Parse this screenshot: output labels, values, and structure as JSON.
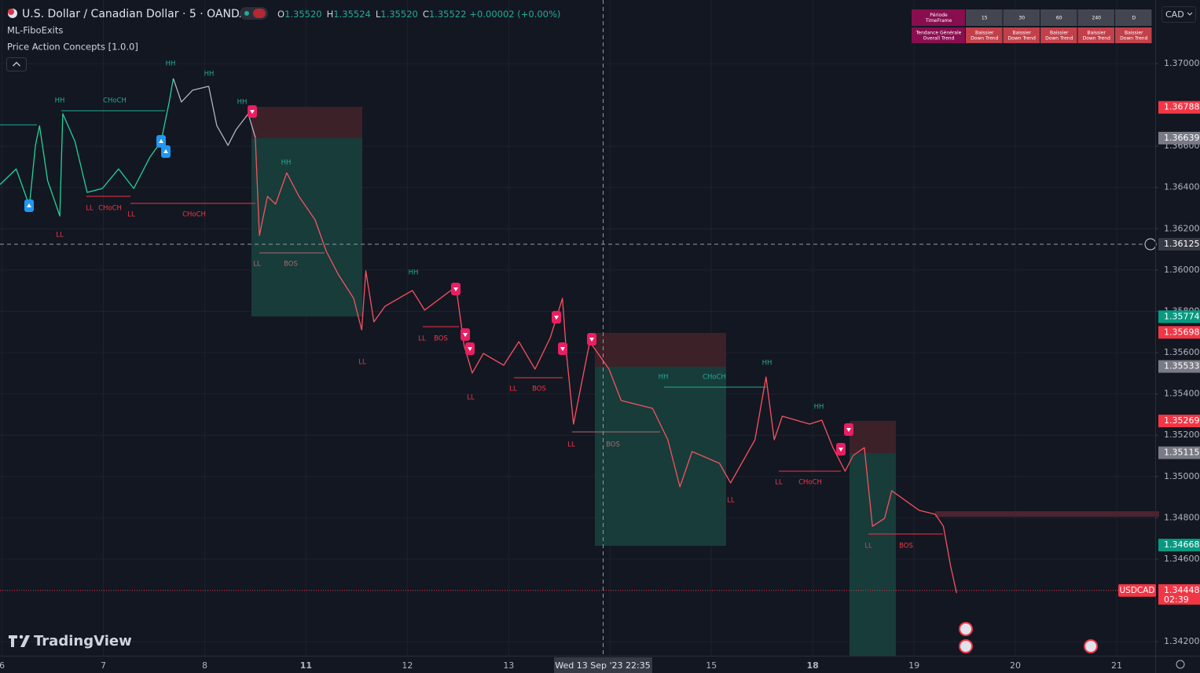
{
  "header": {
    "title": "U.S. Dollar / Canadian Dollar · 5 · OANDA",
    "ohlc": [
      {
        "key": "O",
        "value": "1.35520"
      },
      {
        "key": "H",
        "value": "1.35524"
      },
      {
        "key": "L",
        "value": "1.35520"
      },
      {
        "key": "C",
        "value": "1.35522"
      }
    ],
    "change": "+0.00002 (+0.00%)",
    "indicators": [
      "ML-FiboExits",
      "Price Action Concepts [1.0.0]"
    ],
    "currency": "CAD",
    "logo": "TradingView"
  },
  "trend_table": {
    "header": [
      [
        "Période",
        "TimeFrame"
      ],
      [
        "15"
      ],
      [
        "30"
      ],
      [
        "60"
      ],
      [
        "240"
      ],
      [
        "D"
      ]
    ],
    "row": [
      [
        "Tendance Générale",
        "Overall Trend"
      ],
      [
        "Baissier",
        "Down Trend"
      ],
      [
        "Baissier",
        "Down Trend"
      ],
      [
        "Baissier",
        "Down Trend"
      ],
      [
        "Baissier",
        "Down Trend"
      ],
      [
        "Baissier",
        "Down Trend"
      ]
    ]
  },
  "chart_data": {
    "type": "line",
    "xlim": [
      -0.02,
      11.38
    ],
    "ylim": [
      1.34132,
      1.37308
    ],
    "time_labels": [
      "6",
      "7",
      "8",
      "11",
      "12",
      "13",
      null,
      "15",
      "18",
      "19",
      "20",
      "21"
    ],
    "yticks": [
      {
        "value": 1.37,
        "label": "1.37000"
      },
      {
        "value": 1.366,
        "label": "1.36600"
      },
      {
        "value": 1.364,
        "label": "1.36400"
      },
      {
        "value": 1.362,
        "label": "1.36200"
      },
      {
        "value": 1.36,
        "label": "1.36000"
      },
      {
        "value": 1.358,
        "label": "1.35800"
      },
      {
        "value": 1.356,
        "label": "1.35600"
      },
      {
        "value": 1.354,
        "label": "1.35400"
      },
      {
        "value": 1.352,
        "label": "1.35200"
      },
      {
        "value": 1.35,
        "label": "1.35000"
      },
      {
        "value": 1.348,
        "label": "1.34800"
      },
      {
        "value": 1.346,
        "label": "1.34600"
      },
      {
        "value": 1.342,
        "label": "1.34200"
      }
    ],
    "grid": true,
    "series": [
      {
        "color": "#22d39a",
        "x": [
          -0.02,
          0.14,
          0.27,
          0.33,
          0.37,
          0.45,
          0.57,
          0.6,
          0.72,
          0.84,
          0.99,
          1.15,
          1.3,
          1.46,
          1.57,
          1.65,
          1.69
        ],
        "values": [
          1.36414,
          1.3649,
          1.36311,
          1.36604,
          1.36699,
          1.36433,
          1.36262,
          1.36757,
          1.36623,
          1.36376,
          1.36395,
          1.3649,
          1.36395,
          1.36547,
          1.36623,
          1.36814,
          1.36928
        ]
      },
      {
        "color": "#b2b5be",
        "x": [
          1.69,
          1.77,
          1.88,
          2.04,
          2.12,
          2.23,
          2.31,
          2.43,
          2.5
        ],
        "values": [
          1.36928,
          1.36814,
          1.36871,
          1.3689,
          1.36699,
          1.36604,
          1.3668,
          1.36757,
          1.36642
        ]
      },
      {
        "color": "#f7525f",
        "x": [
          2.5,
          2.54,
          2.62,
          2.7,
          2.81,
          2.93,
          3.09,
          3.2,
          3.32,
          3.47,
          3.55,
          3.59,
          3.67,
          3.78,
          4.05,
          4.17,
          4.48,
          4.56,
          4.64,
          4.75,
          4.95,
          5.1,
          5.26,
          5.41,
          5.53,
          5.57,
          5.64,
          5.8,
          5.99,
          6.11,
          6.42,
          6.57,
          6.69,
          6.81,
          7.08,
          7.19,
          7.43,
          7.54,
          7.62,
          7.7,
          7.97,
          8.09,
          8.2,
          8.32,
          8.4,
          8.51,
          8.59,
          8.71,
          8.78,
          9.05,
          9.21,
          9.29,
          9.36,
          9.42
        ],
        "values": [
          1.36642,
          1.36167,
          1.36357,
          1.36319,
          1.36471,
          1.36357,
          1.36243,
          1.36091,
          1.35977,
          1.35863,
          1.3571,
          1.35996,
          1.35749,
          1.35825,
          1.35901,
          1.35806,
          1.3592,
          1.35634,
          1.35501,
          1.35596,
          1.35539,
          1.35653,
          1.3552,
          1.35672,
          1.35863,
          1.35596,
          1.35254,
          1.35653,
          1.3552,
          1.35368,
          1.3533,
          1.35178,
          1.3495,
          1.35121,
          1.35064,
          1.34969,
          1.35178,
          1.35482,
          1.35178,
          1.35292,
          1.35254,
          1.35273,
          1.3514,
          1.35026,
          1.35102,
          1.3514,
          1.34759,
          1.34798,
          1.34931,
          1.34836,
          1.34817,
          1.34759,
          1.34569,
          1.34436
        ]
      }
    ],
    "price_labels": [
      {
        "value": 1.36788,
        "label": "1.36788",
        "color": "#f23645"
      },
      {
        "value": 1.36639,
        "label": "1.36639",
        "color": "#787b86"
      },
      {
        "value": 1.36125,
        "label": "1.36125",
        "color": "#363a45"
      },
      {
        "value": 1.35774,
        "label": "1.35774",
        "color": "#089981"
      },
      {
        "value": 1.35698,
        "label": "1.35698",
        "color": "#f23645"
      },
      {
        "value": 1.35533,
        "label": "1.35533",
        "color": "#787b86"
      },
      {
        "value": 1.35269,
        "label": "1.35269",
        "color": "#f23645"
      },
      {
        "value": 1.35115,
        "label": "1.35115",
        "color": "#787b86"
      },
      {
        "value": 1.34668,
        "label": "1.34668",
        "color": "#089981"
      },
      {
        "value": 1.34448,
        "label": "1.34448",
        "color": "#f23645",
        "tag": "USDCAD",
        "countdown": "02:39"
      }
    ],
    "crosshair_time": "Wed 13 Sep '23  22:35",
    "annotations": [
      {
        "text": "HH",
        "color": "#22ab94"
      },
      {
        "text": "HH",
        "color": "#22ab94"
      },
      {
        "text": "HH",
        "color": "#22ab94"
      },
      {
        "text": "CHoCH",
        "color": "#22ab94"
      },
      {
        "text": "HH",
        "color": "#22ab94"
      },
      {
        "text": "HH",
        "color": "#22ab94"
      },
      {
        "text": "LL",
        "color": "#f23645"
      },
      {
        "text": "CHoCH",
        "color": "#f23645"
      },
      {
        "text": "LL",
        "color": "#f23645"
      },
      {
        "text": "CHoCH",
        "color": "#f23645"
      },
      {
        "text": "LL",
        "color": "#f23645"
      },
      {
        "text": "LL",
        "color": "#a86a6e"
      },
      {
        "text": "BOS",
        "color": "#a86a6e"
      },
      {
        "text": "HH",
        "color": "#22ab94"
      },
      {
        "text": "LL",
        "color": "#f23645"
      },
      {
        "text": "BOS",
        "color": "#f23645"
      },
      {
        "text": "LL",
        "color": "#f23645"
      },
      {
        "text": "LL",
        "color": "#f23645"
      },
      {
        "text": "BOS",
        "color": "#f23645"
      },
      {
        "text": "LL",
        "color": "#f23645"
      },
      {
        "text": "LL",
        "color": "#f23645"
      },
      {
        "text": "BOS",
        "color": "#a86a6e"
      },
      {
        "text": "HH",
        "color": "#22ab94"
      },
      {
        "text": "CHoCH",
        "color": "#22ab94"
      },
      {
        "text": "HH",
        "color": "#22ab94"
      },
      {
        "text": "HH",
        "color": "#22ab94"
      },
      {
        "text": "LL",
        "color": "#f23645"
      },
      {
        "text": "CHoCH",
        "color": "#f23645"
      },
      {
        "text": "LL",
        "color": "#f23645"
      },
      {
        "text": "LL",
        "color": "#f23645"
      },
      {
        "text": "BOS",
        "color": "#f23645"
      }
    ]
  }
}
